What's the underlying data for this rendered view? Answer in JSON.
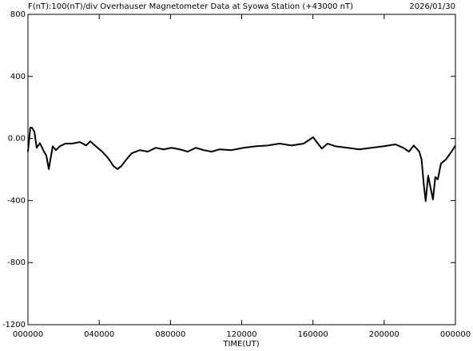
{
  "chart_data": {
    "type": "line",
    "title": "F(nT):100(nT)/div  Overhauser Magnetometer Data at Syowa Station (+43000 nT)",
    "date": "2026/01/30",
    "x_label": "TIME(UT)",
    "xlim": [
      0,
      24
    ],
    "xticks": [
      {
        "value": 0,
        "label": "000000"
      },
      {
        "value": 4,
        "label": "040000"
      },
      {
        "value": 8,
        "label": "080000"
      },
      {
        "value": 12,
        "label": "120000"
      },
      {
        "value": 16,
        "label": "160000"
      },
      {
        "value": 20,
        "label": "200000"
      },
      {
        "value": 24,
        "label": "000000"
      }
    ],
    "ylim": [
      -1200,
      800
    ],
    "yticks": [
      -1200,
      -800,
      -400,
      {
        "value": 0,
        "label": "0.00"
      },
      400,
      800
    ],
    "x": [
      0,
      0.13,
      0.22,
      0.36,
      0.49,
      0.67,
      0.9,
      1.03,
      1.17,
      1.26,
      1.39,
      1.57,
      1.79,
      2.1,
      2.47,
      2.92,
      3.27,
      3.5,
      3.81,
      4.17,
      4.49,
      4.8,
      5.02,
      5.25,
      5.52,
      5.83,
      6.28,
      6.73,
      7.17,
      7.62,
      8.07,
      8.52,
      8.97,
      9.42,
      9.87,
      10.31,
      10.76,
      11.43,
      12.11,
      12.78,
      13.46,
      14.13,
      14.8,
      15.48,
      16.01,
      16.28,
      16.5,
      16.82,
      17.26,
      17.94,
      18.61,
      19.28,
      19.96,
      20.63,
      21.08,
      21.39,
      21.66,
      21.97,
      22.1,
      22.24,
      22.33,
      22.47,
      22.6,
      22.74,
      22.87,
      23.01,
      23.19,
      23.46,
      23.78,
      24
    ],
    "series": [
      {
        "name": "F",
        "color": "#000000",
        "values": [
          -85,
          70,
          70,
          44,
          -60,
          -30,
          -85,
          -110,
          -197,
          -136,
          -50,
          -75,
          -50,
          -33,
          -33,
          -23,
          -45,
          -18,
          -50,
          -85,
          -125,
          -177,
          -197,
          -177,
          -136,
          -95,
          -75,
          -85,
          -60,
          -70,
          -60,
          -70,
          -85,
          -60,
          -75,
          -85,
          -70,
          -75,
          -60,
          -50,
          -45,
          -33,
          -45,
          -33,
          8,
          -33,
          -65,
          -33,
          -50,
          -60,
          -70,
          -60,
          -50,
          -38,
          -60,
          -85,
          -45,
          -85,
          -136,
          -316,
          -403,
          -239,
          -316,
          -393,
          -249,
          -264,
          -161,
          -136,
          -85,
          -45
        ]
      }
    ]
  }
}
